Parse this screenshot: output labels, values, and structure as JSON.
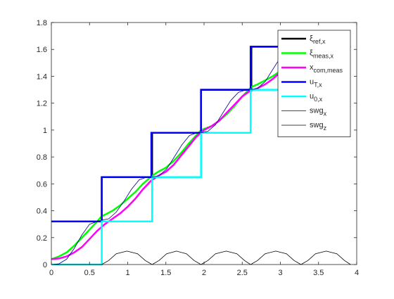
{
  "chart_data": {
    "type": "line",
    "title": "",
    "xlabel": "",
    "ylabel": "",
    "xlim": [
      0,
      4
    ],
    "ylim": [
      0,
      1.8
    ],
    "x_ticks": [
      0,
      0.5,
      1,
      1.5,
      2,
      2.5,
      3,
      3.5,
      4
    ],
    "x_tick_labels": [
      "0",
      "0.5",
      "1",
      "1.5",
      "2",
      "2.5",
      "3",
      "3.5",
      "4"
    ],
    "y_ticks": [
      0,
      0.2,
      0.4,
      0.6,
      0.8,
      1,
      1.2,
      1.4,
      1.6,
      1.8
    ],
    "y_tick_labels": [
      "0",
      "0.2",
      "0.4",
      "0.6",
      "0.8",
      "1",
      "1.2",
      "1.4",
      "1.6",
      "1.8"
    ],
    "grid": false,
    "legend_position": "top-right",
    "series": [
      {
        "name": "ξref,x",
        "label_main": "ξ",
        "label_sub": "ref,x",
        "color": "#000000",
        "style": "step",
        "x": [
          0,
          0.66,
          0.66,
          1.32,
          1.32,
          1.96,
          1.96,
          2.62,
          2.62,
          3.92
        ],
        "y": [
          0.32,
          0.32,
          0.65,
          0.65,
          0.98,
          0.98,
          1.3,
          1.3,
          1.62,
          1.62
        ]
      },
      {
        "name": "ξmeas,x",
        "label_main": "ξ",
        "label_sub": "meas,x",
        "color": "#00ff00",
        "style": "line",
        "x": [
          0,
          0.1,
          0.2,
          0.3,
          0.4,
          0.5,
          0.6,
          0.66,
          0.7,
          0.8,
          0.9,
          1.0,
          1.1,
          1.2,
          1.32,
          1.4,
          1.5,
          1.6,
          1.7,
          1.8,
          1.96,
          2.1,
          2.2,
          2.3,
          2.4,
          2.5,
          2.62,
          2.7,
          2.8,
          2.9,
          3.0,
          3.1,
          3.2,
          3.3,
          3.4
        ],
        "y": [
          0.04,
          0.06,
          0.09,
          0.14,
          0.2,
          0.26,
          0.32,
          0.36,
          0.37,
          0.4,
          0.44,
          0.49,
          0.54,
          0.6,
          0.66,
          0.69,
          0.72,
          0.77,
          0.83,
          0.9,
          1.0,
          1.03,
          1.07,
          1.12,
          1.18,
          1.25,
          1.32,
          1.34,
          1.37,
          1.4,
          1.44,
          1.48,
          1.54,
          1.6,
          1.66
        ]
      },
      {
        "name": "xcom,meas",
        "label_main": "x",
        "label_sub": "com,meas",
        "color": "#ff00ff",
        "style": "line",
        "x": [
          0,
          0.1,
          0.2,
          0.3,
          0.4,
          0.5,
          0.6,
          0.7,
          0.8,
          0.9,
          1.0,
          1.1,
          1.2,
          1.3,
          1.4,
          1.5,
          1.6,
          1.7,
          1.8,
          1.9,
          2.0,
          2.1,
          2.2,
          2.3,
          2.4,
          2.5,
          2.6,
          2.7,
          2.8,
          2.9,
          3.0,
          3.1,
          3.2,
          3.3,
          3.4
        ],
        "y": [
          0.04,
          0.045,
          0.06,
          0.09,
          0.13,
          0.19,
          0.25,
          0.3,
          0.34,
          0.38,
          0.43,
          0.49,
          0.56,
          0.62,
          0.66,
          0.69,
          0.74,
          0.81,
          0.88,
          0.95,
          1.0,
          1.03,
          1.07,
          1.13,
          1.19,
          1.25,
          1.29,
          1.31,
          1.34,
          1.38,
          1.43,
          1.49,
          1.55,
          1.62,
          1.69
        ]
      },
      {
        "name": "uT,x",
        "label_main": "u",
        "label_sub": "T,x",
        "color": "#0000ff",
        "style": "step",
        "x": [
          0,
          0.66,
          0.66,
          1.31,
          1.31,
          1.96,
          1.96,
          2.61,
          2.61,
          3.92
        ],
        "y": [
          0.32,
          0.32,
          0.65,
          0.65,
          0.98,
          0.98,
          1.3,
          1.3,
          1.62,
          1.62
        ]
      },
      {
        "name": "u0,x",
        "label_main": "u",
        "label_sub": "0,x",
        "color": "#00ffff",
        "style": "step",
        "x": [
          0,
          0.66,
          0.66,
          0.66,
          0.66,
          1.32,
          1.32,
          1.32,
          1.32,
          1.96,
          1.96,
          1.96,
          1.96,
          2.61,
          2.61,
          2.61,
          2.61,
          3.92
        ],
        "y": [
          0,
          0,
          0.32,
          0,
          0.32,
          0.32,
          0.65,
          0.32,
          0.65,
          0.65,
          0.98,
          0.65,
          0.98,
          0.98,
          1.3,
          0.98,
          1.3,
          1.3
        ]
      },
      {
        "name": "swgx",
        "label_main": "swg",
        "label_sub": "x",
        "color": "#00008b",
        "style": "line",
        "x": [
          0,
          0.1,
          0.2,
          0.3,
          0.4,
          0.5,
          0.6,
          0.66,
          0.75,
          0.85,
          0.95,
          1.05,
          1.15,
          1.25,
          1.32,
          1.41,
          1.51,
          1.61,
          1.71,
          1.81,
          1.91,
          1.96,
          2.05,
          2.15,
          2.25,
          2.35,
          2.45,
          2.55,
          2.61,
          2.7,
          2.8,
          2.9,
          3.0,
          3.1,
          3.2,
          3.27
        ],
        "y": [
          0,
          0.005,
          0.04,
          0.12,
          0.22,
          0.3,
          0.32,
          0.33,
          0.34,
          0.39,
          0.47,
          0.56,
          0.63,
          0.65,
          0.65,
          0.66,
          0.71,
          0.8,
          0.89,
          0.96,
          0.98,
          0.98,
          0.99,
          1.04,
          1.13,
          1.22,
          1.28,
          1.3,
          1.3,
          1.31,
          1.36,
          1.45,
          1.54,
          1.6,
          1.62,
          1.62
        ]
      },
      {
        "name": "swgz",
        "label_main": "swg",
        "label_sub": "z",
        "color": "#000000",
        "style": "line",
        "x": [
          0,
          0.66,
          0.75,
          0.85,
          0.99,
          1.13,
          1.23,
          1.32,
          1.41,
          1.51,
          1.64,
          1.77,
          1.87,
          1.96,
          2.05,
          2.15,
          2.29,
          2.43,
          2.53,
          2.61,
          2.7,
          2.8,
          2.94,
          3.08,
          3.18,
          3.27,
          3.36,
          3.46,
          3.6,
          3.74,
          3.84,
          3.92
        ],
        "y": [
          0,
          0,
          0.03,
          0.08,
          0.1,
          0.08,
          0.03,
          0,
          0.03,
          0.08,
          0.1,
          0.08,
          0.03,
          0,
          0.03,
          0.08,
          0.1,
          0.08,
          0.03,
          0,
          0.03,
          0.08,
          0.1,
          0.08,
          0.03,
          0,
          0.03,
          0.08,
          0.1,
          0.08,
          0.03,
          0
        ]
      }
    ]
  }
}
